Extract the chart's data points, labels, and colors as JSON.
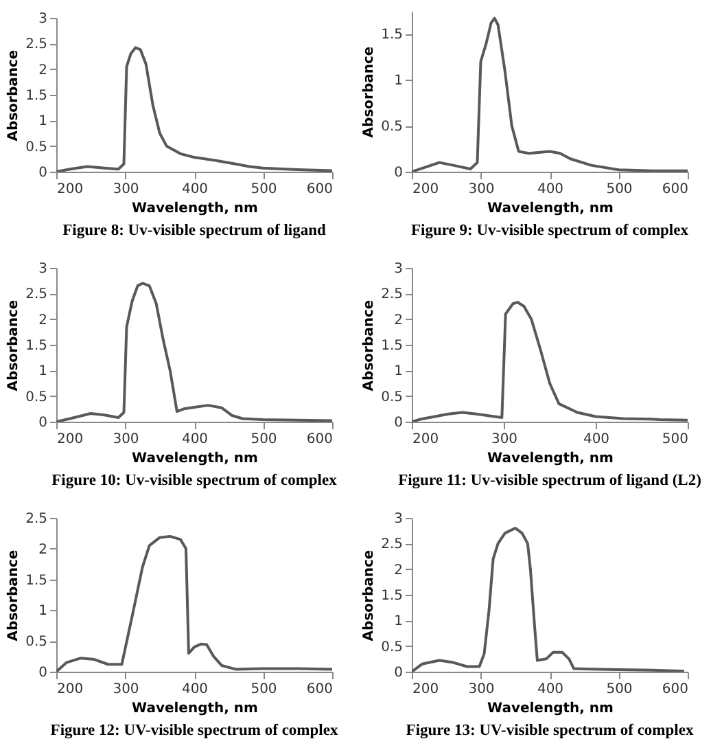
{
  "chart_data": [
    {
      "type": "line",
      "title": "Figure 8: Uv-visible spectrum of ligand",
      "xlabel": "Wavelength, nm",
      "ylabel": "Absorbance",
      "color": "#595959",
      "xlim": [
        200,
        600
      ],
      "xticks": [
        200,
        300,
        400,
        500,
        600
      ],
      "ylim": [
        0,
        3
      ],
      "yticks": [
        0,
        0.5,
        1,
        1.5,
        2,
        2.5,
        3
      ],
      "x": [
        200,
        220,
        245,
        270,
        290,
        298,
        302,
        308,
        315,
        322,
        330,
        340,
        350,
        360,
        380,
        400,
        430,
        460,
        480,
        500,
        550,
        600
      ],
      "values": [
        0,
        0.05,
        0.1,
        0.07,
        0.05,
        0.15,
        2.05,
        2.3,
        2.42,
        2.38,
        2.1,
        1.3,
        0.75,
        0.5,
        0.35,
        0.28,
        0.22,
        0.15,
        0.1,
        0.07,
        0.04,
        0.02
      ]
    },
    {
      "type": "line",
      "title": "Figure 9: Uv-visible spectrum of complex",
      "xlabel": "Wavelength, nm",
      "ylabel": "Absorbance",
      "color": "#595959",
      "xlim": [
        200,
        600
      ],
      "xticks": [
        200,
        300,
        400,
        500,
        600
      ],
      "ylim": [
        0,
        1.75
      ],
      "yticks": [
        0,
        0.5,
        1,
        1.5
      ],
      "x": [
        200,
        220,
        240,
        260,
        285,
        295,
        300,
        308,
        315,
        320,
        325,
        335,
        345,
        355,
        370,
        400,
        415,
        430,
        460,
        500,
        550,
        600
      ],
      "values": [
        0,
        0.05,
        0.1,
        0.07,
        0.03,
        0.1,
        1.2,
        1.4,
        1.62,
        1.67,
        1.6,
        1.1,
        0.5,
        0.22,
        0.2,
        0.22,
        0.2,
        0.14,
        0.07,
        0.02,
        0.01,
        0.01
      ]
    },
    {
      "type": "line",
      "title": "Figure 10: Uv-visible spectrum of complex",
      "xlabel": "Wavelength, nm",
      "ylabel": "Absorbance",
      "color": "#595959",
      "xlim": [
        200,
        600
      ],
      "xticks": [
        200,
        300,
        400,
        500,
        600
      ],
      "ylim": [
        0,
        3
      ],
      "yticks": [
        0,
        0.5,
        1,
        1.5,
        2,
        2.5,
        3
      ],
      "x": [
        200,
        220,
        250,
        270,
        290,
        298,
        302,
        310,
        318,
        325,
        335,
        345,
        355,
        365,
        375,
        385,
        400,
        420,
        440,
        455,
        470,
        500,
        550,
        600
      ],
      "values": [
        0,
        0.06,
        0.16,
        0.13,
        0.08,
        0.18,
        1.85,
        2.35,
        2.65,
        2.7,
        2.65,
        2.3,
        1.6,
        1.0,
        0.2,
        0.25,
        0.28,
        0.32,
        0.27,
        0.12,
        0.06,
        0.04,
        0.03,
        0.02
      ]
    },
    {
      "type": "line",
      "title": "Figure 11: Uv-visible spectrum of ligand (L2)",
      "xlabel": "Wavelength, nm",
      "ylabel": "Absorbance",
      "color": "#595959",
      "xlim": [
        200,
        500
      ],
      "xticks": [
        200,
        300,
        400,
        500
      ],
      "ylim": [
        0,
        3
      ],
      "yticks": [
        0,
        0.5,
        1,
        1.5,
        2,
        2.5,
        3
      ],
      "x": [
        200,
        210,
        225,
        240,
        255,
        270,
        290,
        298,
        302,
        310,
        315,
        322,
        330,
        340,
        350,
        360,
        380,
        400,
        430,
        460,
        470,
        500
      ],
      "values": [
        0,
        0.05,
        0.1,
        0.15,
        0.18,
        0.15,
        0.1,
        0.08,
        2.1,
        2.3,
        2.33,
        2.25,
        2.0,
        1.4,
        0.75,
        0.35,
        0.18,
        0.1,
        0.06,
        0.05,
        0.04,
        0.03
      ]
    },
    {
      "type": "line",
      "title": "Figure 12: UV-visible spectrum of complex",
      "xlabel": "Wavelength, nm",
      "ylabel": "Absorbance",
      "color": "#595959",
      "xlim": [
        200,
        600
      ],
      "xticks": [
        200,
        300,
        400,
        500,
        600
      ],
      "ylim": [
        0,
        2.5
      ],
      "yticks": [
        0,
        0.5,
        1,
        1.5,
        2,
        2.5
      ],
      "x": [
        200,
        215,
        235,
        255,
        275,
        295,
        310,
        325,
        335,
        350,
        365,
        380,
        388,
        392,
        400,
        410,
        418,
        428,
        440,
        460,
        500,
        550,
        600
      ],
      "values": [
        0,
        0.15,
        0.22,
        0.2,
        0.12,
        0.12,
        0.9,
        1.7,
        2.05,
        2.18,
        2.2,
        2.15,
        2.0,
        0.3,
        0.4,
        0.45,
        0.44,
        0.25,
        0.1,
        0.04,
        0.05,
        0.05,
        0.04
      ]
    },
    {
      "type": "line",
      "title": "Figure 13: UV-visible spectrum of complex",
      "xlabel": "Wavelength, nm",
      "ylabel": "Absorbance",
      "color": "#595959",
      "xlim": [
        200,
        600
      ],
      "xticks": [
        200,
        300,
        400,
        500,
        600
      ],
      "ylim": [
        0,
        3
      ],
      "yticks": [
        0,
        0.5,
        1,
        1.5,
        2,
        2.5,
        3
      ],
      "x": [
        200,
        215,
        240,
        260,
        280,
        298,
        305,
        312,
        318,
        325,
        335,
        350,
        360,
        368,
        372,
        378,
        382,
        395,
        405,
        418,
        428,
        435,
        460,
        500,
        550,
        595
      ],
      "values": [
        0,
        0.15,
        0.22,
        0.18,
        0.1,
        0.1,
        0.35,
        1.2,
        2.2,
        2.5,
        2.7,
        2.8,
        2.7,
        2.5,
        2.0,
        0.9,
        0.22,
        0.25,
        0.38,
        0.38,
        0.25,
        0.06,
        0.05,
        0.04,
        0.03,
        0.01
      ]
    }
  ]
}
